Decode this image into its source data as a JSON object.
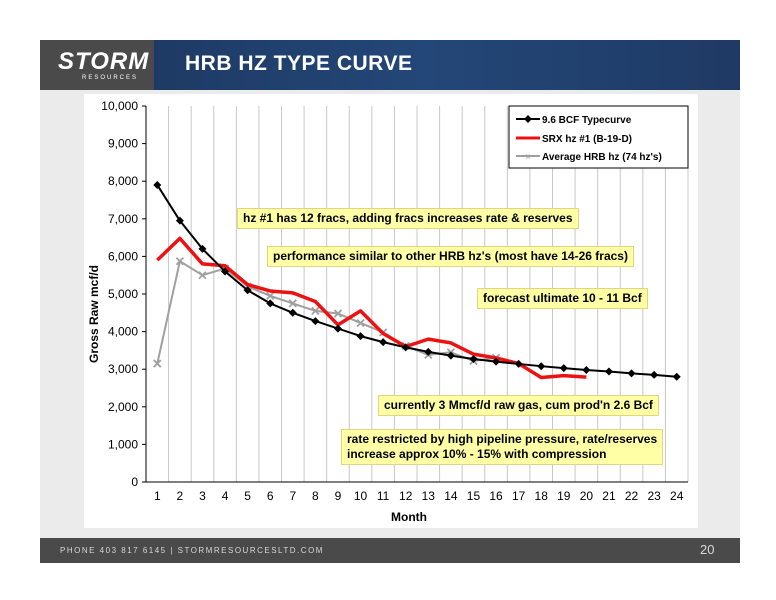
{
  "header": {
    "logo_main": "STORM",
    "logo_sub": "RESOURCES",
    "title": "HRB HZ TYPE CURVE"
  },
  "footer": {
    "contact": "PHONE 403 817 6145  |  STORMRESOURCESLTD.COM",
    "page_number": "20"
  },
  "colors": {
    "header_bg": "#1f3a64",
    "logo_bg": "#4a4a4a",
    "typecurve": "#000000",
    "srx": "#ee1111",
    "average": "#a0a0a0",
    "callout_bg": "#ffffa6"
  },
  "callouts": [
    "hz #1 has 12 fracs, adding fracs increases rate & reserves",
    "performance similar to other HRB hz's (most have 14-26 fracs)",
    "forecast ultimate 10 - 11 Bcf",
    "currently 3 Mmcf/d raw gas, cum prod'n 2.6 Bcf",
    "rate restricted by high pipeline pressure, rate/reserves",
    "increase approx 10% - 15% with compression"
  ],
  "chart_data": {
    "type": "line",
    "xlabel": "Month",
    "ylabel": "Gross Raw mcf/d",
    "ylim": [
      0,
      10000
    ],
    "xlim": [
      0.5,
      24.5
    ],
    "grid": "vertical",
    "legend_position": "top-right",
    "x_ticks": [
      "1",
      "2",
      "3",
      "4",
      "5",
      "6",
      "7",
      "8",
      "9",
      "10",
      "11",
      "12",
      "13",
      "14",
      "15",
      "16",
      "17",
      "18",
      "19",
      "20",
      "21",
      "22",
      "23",
      "24"
    ],
    "y_ticks": [
      "0",
      "1,000",
      "2,000",
      "3,000",
      "4,000",
      "5,000",
      "6,000",
      "7,000",
      "8,000",
      "9,000",
      "10,000"
    ],
    "series": [
      {
        "name": "9.6 BCF Typecurve",
        "x": [
          1,
          2,
          3,
          4,
          5,
          6,
          7,
          8,
          9,
          10,
          11,
          12,
          13,
          14,
          15,
          16,
          17,
          18,
          19,
          20,
          21,
          22,
          23,
          24
        ],
        "values": [
          7900,
          6950,
          6200,
          5600,
          5100,
          4750,
          4500,
          4280,
          4080,
          3880,
          3720,
          3580,
          3460,
          3360,
          3270,
          3200,
          3140,
          3080,
          3030,
          2980,
          2940,
          2890,
          2850,
          2800
        ]
      },
      {
        "name": "SRX hz #1 (B-19-D)",
        "x": [
          1,
          2,
          3,
          4,
          5,
          6,
          7,
          8,
          9,
          10,
          11,
          12,
          13,
          14,
          15,
          16,
          17,
          18,
          19,
          20
        ],
        "values": [
          5900,
          6480,
          5800,
          5750,
          5250,
          5080,
          5030,
          4800,
          4180,
          4550,
          3950,
          3600,
          3800,
          3700,
          3400,
          3300,
          3150,
          2780,
          2830,
          2790
        ]
      },
      {
        "name": "Average HRB hz (74 hz's)",
        "x": [
          1,
          2,
          3,
          4,
          5,
          6,
          7,
          8,
          9,
          10,
          11,
          12,
          13,
          14,
          15,
          16
        ],
        "values": [
          3150,
          5870,
          5500,
          5680,
          5200,
          4950,
          4750,
          4550,
          4480,
          4230,
          3980,
          3620,
          3380,
          3450,
          3220,
          3300
        ]
      }
    ]
  }
}
